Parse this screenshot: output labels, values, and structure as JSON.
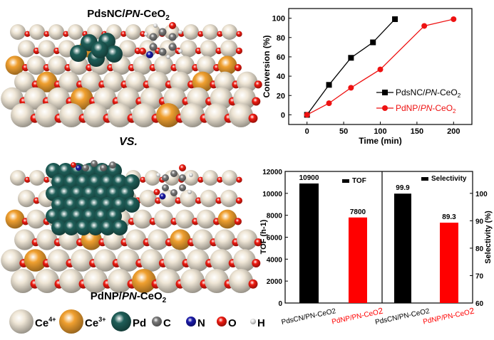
{
  "illustration": {
    "top_title": "PdsNC/PN-CeO2",
    "top_title_parts": [
      "PdsNC/",
      "PN",
      "-CeO",
      "2"
    ],
    "vs_label": "VS.",
    "bottom_title_parts": [
      "PdNP/",
      "PN",
      "-CeO",
      "2"
    ],
    "legend": [
      {
        "symbol": "Ce",
        "sup": "4+",
        "color": "#efe6d6"
      },
      {
        "symbol": "Ce",
        "sup": "3+",
        "color": "#f0a030"
      },
      {
        "symbol": "Pd",
        "sup": "",
        "color": "#1f5e58"
      },
      {
        "symbol": "C",
        "sup": "",
        "color": "#777777"
      },
      {
        "symbol": "N",
        "sup": "",
        "color": "#1a1aa8"
      },
      {
        "symbol": "O",
        "sup": "",
        "color": "#ee1a10"
      },
      {
        "symbol": "H",
        "sup": "",
        "color": "#e6e6e6"
      }
    ]
  },
  "chart_data": [
    {
      "type": "line",
      "xlabel": "Time (min)",
      "ylabel": "Conversion (%)",
      "xlim": [
        -25,
        225
      ],
      "ylim": [
        -10,
        110
      ],
      "xticks": [
        0,
        50,
        100,
        150,
        200
      ],
      "yticks": [
        0,
        20,
        40,
        60,
        80,
        100
      ],
      "legend_placement": "bottom-right",
      "series": [
        {
          "name_parts": [
            "PdsNC/",
            "PN",
            "-CeO",
            "2"
          ],
          "color": "#000000",
          "marker": "square",
          "x": [
            0,
            30,
            60,
            90,
            120
          ],
          "y": [
            0,
            31,
            59,
            75,
            99
          ]
        },
        {
          "name_parts": [
            "PdNP/",
            "PN",
            "-CeO",
            "2"
          ],
          "color": "#ee1111",
          "marker": "circle",
          "x": [
            0,
            30,
            60,
            100,
            160,
            200
          ],
          "y": [
            0,
            12,
            28,
            47,
            92,
            99
          ]
        }
      ]
    },
    {
      "type": "bar",
      "panels": [
        {
          "legend": "TOF",
          "ylabel": "TOF (h-1)",
          "ylabel_parts": [
            "TOF (h",
            "-1",
            ")"
          ],
          "axis": "left",
          "ylim": [
            0,
            12000
          ],
          "yticks": [
            0,
            2000,
            4000,
            6000,
            8000,
            10000,
            12000
          ],
          "categories": [
            "PdsCN/PN-CeO2",
            "PdNP/PN-CeO2"
          ],
          "values": [
            10900,
            7800
          ],
          "labels": [
            "10900",
            "7800"
          ],
          "colors": [
            "#000000",
            "#ff0000"
          ]
        },
        {
          "legend": "Selectivity",
          "ylabel": "Selectivity (%)",
          "axis": "right",
          "ylim": [
            60,
            108
          ],
          "yticks": [
            60,
            70,
            80,
            90,
            100
          ],
          "categories": [
            "PdsCN/PN-CeO2",
            "PdNP/PN-CeO2"
          ],
          "values": [
            99.9,
            89.3
          ],
          "labels": [
            "99.9",
            "89.3"
          ],
          "colors": [
            "#000000",
            "#ff0000"
          ]
        }
      ],
      "category_label_parts": [
        [
          "PdsCN/PN-CeO2",
          ""
        ],
        [
          "PdNP/PN-CeO",
          "2"
        ]
      ]
    }
  ]
}
